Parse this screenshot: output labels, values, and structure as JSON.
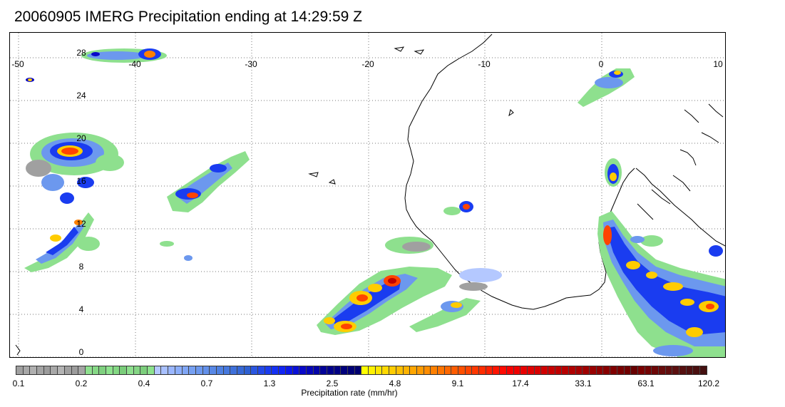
{
  "title": "20060905 IMERG Precipitation ending at 14:29:59 Z",
  "map": {
    "lon_labels": [
      "-50",
      "-40",
      "-30",
      "-20",
      "-10",
      "0",
      "10"
    ],
    "lat_labels": [
      "28",
      "24",
      "20",
      "16",
      "12",
      "8",
      "4",
      "0"
    ],
    "gridlines": "dotted",
    "region": "Tropical eastern Atlantic and West Africa"
  },
  "colorbar": {
    "label": "Precipitation rate (mm/hr)",
    "tick_labels": [
      "0.1",
      "0.2",
      "0.4",
      "0.7",
      "1.3",
      "2.5",
      "4.8",
      "9.1",
      "17.4",
      "33.1",
      "63.1",
      "120.2"
    ],
    "colors": [
      "#a0a0a0",
      "#a8a8a8",
      "#b0b0b0",
      "#a4a4a4",
      "#9c9c9c",
      "#a8a8a8",
      "#b4b4b4",
      "#a0a0a0",
      "#9c9c9c",
      "#a4a4a4",
      "#8fe08f",
      "#86d886",
      "#7fd07f",
      "#8ee38e",
      "#83d883",
      "#7acd7a",
      "#8ee08e",
      "#85d685",
      "#7cce7c",
      "#8de28d",
      "#b4c8ff",
      "#a8c0ff",
      "#9ab6ff",
      "#8caefb",
      "#80a6f5",
      "#76a0f2",
      "#6c98ee",
      "#6290ea",
      "#5888e6",
      "#4e80e2",
      "#4678de",
      "#3e70da",
      "#3668d6",
      "#2e60d2",
      "#2a56e0",
      "#2248e8",
      "#1a3cf0",
      "#1430f4",
      "#1024f4",
      "#0c18e8",
      "#0a10d8",
      "#0808c8",
      "#0606b8",
      "#0404a8",
      "#020298",
      "#00008c",
      "#000084",
      "#00007c",
      "#000076",
      "#000070",
      "#ffff00",
      "#fff200",
      "#ffe600",
      "#ffd900",
      "#ffcc00",
      "#ffbf00",
      "#ffb300",
      "#ffa600",
      "#ff9a00",
      "#ff8d00",
      "#ff8000",
      "#ff7400",
      "#ff6800",
      "#ff5c00",
      "#ff5000",
      "#ff4400",
      "#ff3800",
      "#ff2c00",
      "#ff2000",
      "#ff1400",
      "#ff0a00",
      "#f80000",
      "#f00000",
      "#e80000",
      "#e00000",
      "#d80000",
      "#d00000",
      "#c80000",
      "#c00000",
      "#b80000",
      "#b00000",
      "#a80000",
      "#a00000",
      "#980000",
      "#900000",
      "#880000",
      "#800000",
      "#780000",
      "#700000",
      "#680000",
      "#7a0000",
      "#740404",
      "#6e0808",
      "#680c0c",
      "#620e0e",
      "#5c1010",
      "#561010",
      "#501010",
      "#4a1010",
      "#441010"
    ]
  }
}
